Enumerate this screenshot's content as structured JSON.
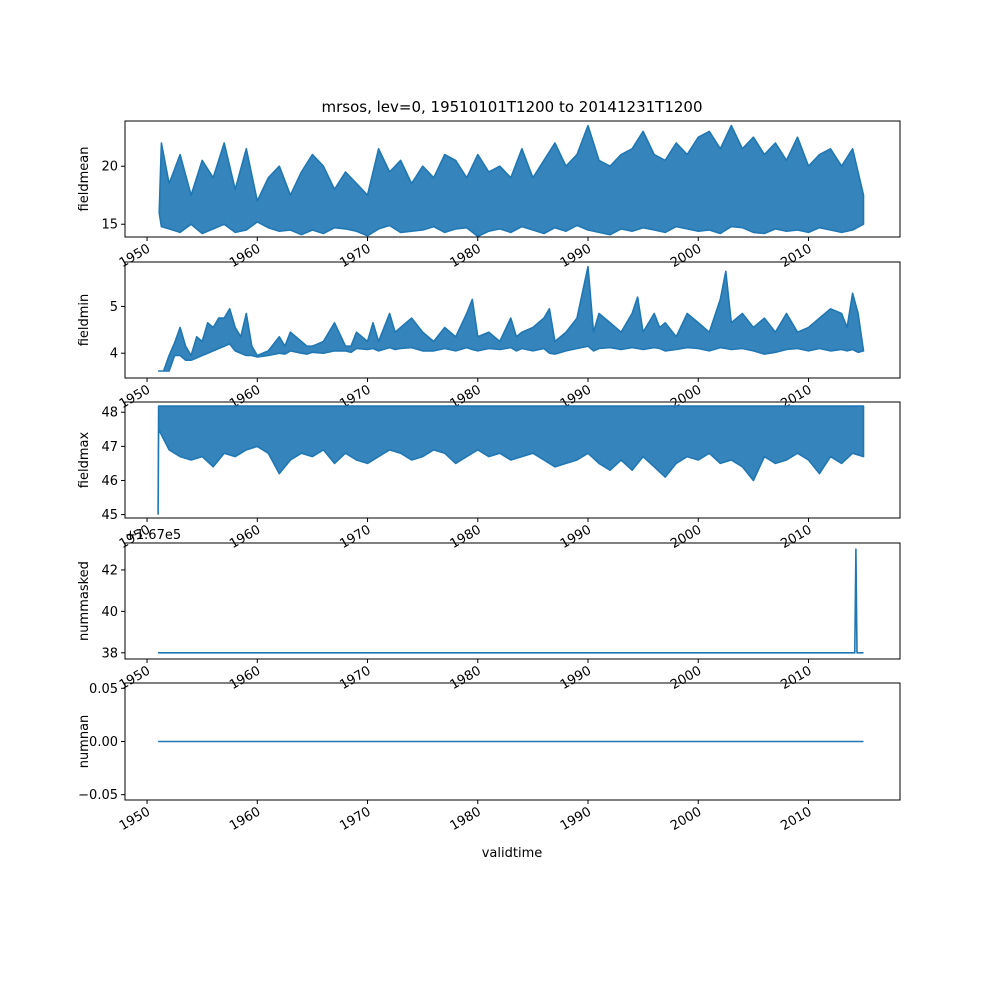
{
  "figure": {
    "title": "mrsos, lev=0, 19510101T1200 to 20141231T1200",
    "xlabel": "validtime",
    "x_tick_labels": [
      "1950",
      "1960",
      "1970",
      "1980",
      "1990",
      "2000",
      "2010"
    ]
  },
  "chart_data": [
    {
      "type": "line",
      "ylabel": "fieldmean",
      "series_color": "#1f77b4",
      "xlim": [
        1948.0,
        2018.3
      ],
      "ylim": [
        13.9,
        23.9
      ],
      "yticks": [
        15,
        20
      ],
      "ytick_labels": [
        "15",
        "20"
      ],
      "offset_text": "",
      "x": [
        1951.1,
        1951.3,
        1952.0,
        1953.0,
        1954.0,
        1955.0,
        1956.0,
        1957.0,
        1958.0,
        1959.0,
        1960.0,
        1961.0,
        1962.0,
        1963.0,
        1964.0,
        1965.0,
        1966.0,
        1967.0,
        1968.0,
        1969.0,
        1970.0,
        1971.0,
        1972.0,
        1973.0,
        1974.0,
        1975.0,
        1976.0,
        1977.0,
        1978.0,
        1979.0,
        1980.0,
        1981.0,
        1982.0,
        1983.0,
        1984.0,
        1985.0,
        1986.0,
        1987.0,
        1988.0,
        1989.0,
        1990.0,
        1991.0,
        1992.0,
        1993.0,
        1994.0,
        1995.0,
        1996.0,
        1997.0,
        1998.0,
        1999.0,
        2000.0,
        2001.0,
        2002.0,
        2003.0,
        2004.0,
        2005.0,
        2006.0,
        2007.0,
        2008.0,
        2009.0,
        2010.0,
        2011.0,
        2012.0,
        2013.0,
        2014.0,
        2014.99
      ],
      "y": [
        16.0,
        22.0,
        18.5,
        21.0,
        17.5,
        20.5,
        19.0,
        22.0,
        18.0,
        21.5,
        17.0,
        19.0,
        20.0,
        17.5,
        19.5,
        21.0,
        20.0,
        18.0,
        19.5,
        18.5,
        17.5,
        21.5,
        19.5,
        20.5,
        18.5,
        20.0,
        19.0,
        21.0,
        20.5,
        19.0,
        21.0,
        19.5,
        20.0,
        19.0,
        21.5,
        19.0,
        20.5,
        22.0,
        20.0,
        21.0,
        23.5,
        20.5,
        20.0,
        21.0,
        21.5,
        23.0,
        21.0,
        20.5,
        22.0,
        21.0,
        22.5,
        23.0,
        21.5,
        23.5,
        21.5,
        22.5,
        21.0,
        22.0,
        20.5,
        22.5,
        20.0,
        21.0,
        21.5,
        20.0,
        21.5,
        17.5
      ],
      "y_low": [
        16.0,
        14.8,
        14.6,
        14.3,
        15.0,
        14.2,
        14.6,
        15.0,
        14.3,
        14.5,
        15.2,
        14.7,
        14.4,
        14.5,
        14.1,
        14.5,
        14.2,
        14.7,
        14.6,
        14.4,
        14.0,
        14.6,
        14.9,
        14.3,
        14.4,
        14.5,
        14.8,
        14.3,
        14.6,
        14.7,
        13.95,
        14.4,
        14.6,
        14.3,
        14.8,
        14.5,
        14.2,
        14.7,
        14.4,
        14.9,
        14.5,
        14.3,
        14.1,
        14.6,
        14.4,
        14.7,
        14.5,
        14.3,
        14.8,
        14.6,
        14.4,
        14.5,
        14.2,
        14.8,
        14.7,
        14.3,
        14.2,
        14.6,
        14.4,
        14.5,
        14.3,
        14.7,
        14.5,
        14.3,
        14.5,
        15.0
      ]
    },
    {
      "type": "line",
      "ylabel": "fieldmin",
      "series_color": "#1f77b4",
      "xlim": [
        1948.0,
        2018.3
      ],
      "ylim": [
        3.47,
        5.95
      ],
      "yticks": [
        4,
        5
      ],
      "ytick_labels": [
        "4",
        "5"
      ],
      "offset_text": "",
      "x": [
        1951.0,
        1951.5,
        1952.0,
        1952.5,
        1953.0,
        1953.5,
        1954.0,
        1954.5,
        1955.0,
        1955.5,
        1956.0,
        1956.5,
        1957.0,
        1957.5,
        1958.0,
        1958.5,
        1959.0,
        1959.5,
        1960.0,
        1961.0,
        1962.0,
        1962.5,
        1963.0,
        1964.0,
        1964.5,
        1965.0,
        1966.0,
        1967.0,
        1968.0,
        1968.5,
        1969.0,
        1970.0,
        1970.5,
        1971.0,
        1972.0,
        1972.5,
        1973.0,
        1974.0,
        1975.0,
        1976.0,
        1977.0,
        1978.0,
        1979.0,
        1979.5,
        1980.0,
        1981.0,
        1982.0,
        1983.0,
        1983.5,
        1984.0,
        1985.0,
        1986.0,
        1986.5,
        1987.0,
        1988.0,
        1989.0,
        1990.0,
        1990.5,
        1991.0,
        1992.0,
        1993.0,
        1994.0,
        1994.5,
        1995.0,
        1996.0,
        1996.5,
        1997.0,
        1998.0,
        1999.0,
        2000.0,
        2001.0,
        2002.0,
        2002.5,
        2003.0,
        2004.0,
        2005.0,
        2006.0,
        2007.0,
        2008.0,
        2009.0,
        2010.0,
        2011.0,
        2012.0,
        2013.0,
        2013.5,
        2014.0,
        2014.5,
        2014.99
      ],
      "y": [
        3.62,
        3.62,
        3.95,
        4.22,
        4.55,
        4.15,
        3.95,
        4.35,
        4.25,
        4.65,
        4.55,
        4.75,
        4.75,
        4.95,
        4.55,
        4.35,
        4.85,
        4.15,
        3.95,
        4.05,
        4.35,
        4.15,
        4.45,
        4.25,
        4.15,
        4.15,
        4.25,
        4.65,
        4.15,
        4.15,
        4.45,
        4.25,
        4.65,
        4.25,
        4.85,
        4.45,
        4.55,
        4.75,
        4.45,
        4.25,
        4.55,
        4.35,
        4.85,
        5.15,
        4.35,
        4.45,
        4.25,
        4.75,
        4.35,
        4.45,
        4.55,
        4.75,
        4.95,
        4.25,
        4.45,
        4.75,
        5.85,
        4.45,
        4.85,
        4.65,
        4.45,
        4.85,
        5.2,
        4.45,
        4.85,
        4.55,
        4.65,
        4.35,
        4.85,
        4.65,
        4.45,
        5.15,
        5.75,
        4.65,
        4.85,
        4.55,
        4.75,
        4.45,
        4.85,
        4.45,
        4.55,
        4.75,
        4.95,
        4.85,
        4.55,
        5.28,
        4.85,
        4.05
      ],
      "y_low": [
        3.62,
        3.62,
        3.62,
        3.95,
        3.95,
        3.85,
        3.85,
        3.9,
        3.95,
        4.0,
        4.05,
        4.1,
        4.15,
        4.2,
        4.05,
        4.0,
        3.95,
        3.95,
        3.92,
        3.95,
        4.0,
        3.98,
        4.05,
        4.0,
        3.98,
        4.02,
        4.0,
        4.05,
        4.05,
        4.02,
        4.1,
        4.08,
        4.1,
        4.05,
        4.12,
        4.08,
        4.1,
        4.12,
        4.05,
        4.05,
        4.1,
        4.05,
        4.12,
        4.08,
        4.05,
        4.1,
        4.08,
        4.12,
        4.05,
        4.1,
        4.05,
        4.1,
        4.0,
        3.98,
        4.05,
        4.1,
        4.15,
        4.05,
        4.1,
        4.12,
        4.08,
        4.12,
        4.1,
        4.08,
        4.12,
        4.1,
        4.05,
        4.08,
        4.12,
        4.1,
        4.05,
        4.12,
        4.1,
        4.08,
        4.1,
        4.05,
        3.98,
        4.02,
        4.08,
        4.1,
        4.05,
        4.1,
        4.05,
        4.08,
        4.05,
        4.08,
        4.02,
        4.05
      ]
    },
    {
      "type": "line",
      "ylabel": "fieldmax",
      "series_color": "#1f77b4",
      "xlim": [
        1948.0,
        2018.3
      ],
      "ylim": [
        44.9,
        48.3
      ],
      "yticks": [
        45,
        46,
        47,
        48
      ],
      "ytick_labels": [
        "45",
        "46",
        "47",
        "48"
      ],
      "offset_text": "",
      "x": [
        1951.0,
        1951.05,
        1952.0,
        1953.0,
        1954.0,
        1955.0,
        1956.0,
        1957.0,
        1958.0,
        1959.0,
        1960.0,
        1961.0,
        1962.0,
        1963.0,
        1964.0,
        1965.0,
        1966.0,
        1967.0,
        1968.0,
        1969.0,
        1970.0,
        1971.0,
        1972.0,
        1973.0,
        1974.0,
        1975.0,
        1976.0,
        1977.0,
        1978.0,
        1979.0,
        1980.0,
        1981.0,
        1982.0,
        1983.0,
        1984.0,
        1985.0,
        1986.0,
        1987.0,
        1988.0,
        1989.0,
        1990.0,
        1991.0,
        1992.0,
        1993.0,
        1994.0,
        1995.0,
        1996.0,
        1997.0,
        1998.0,
        1999.0,
        2000.0,
        2001.0,
        2002.0,
        2003.0,
        2004.0,
        2005.0,
        2006.0,
        2007.0,
        2008.0,
        2009.0,
        2010.0,
        2011.0,
        2012.0,
        2013.0,
        2014.0,
        2014.99
      ],
      "y": [
        45.0,
        48.18,
        48.18,
        48.18,
        48.18,
        48.18,
        48.18,
        48.18,
        48.18,
        48.18,
        48.18,
        48.18,
        48.18,
        48.18,
        48.18,
        48.18,
        48.18,
        48.18,
        48.18,
        48.18,
        48.18,
        48.18,
        48.18,
        48.18,
        48.18,
        48.18,
        48.18,
        48.18,
        48.18,
        48.18,
        48.18,
        48.18,
        48.18,
        48.18,
        48.18,
        48.18,
        48.18,
        48.18,
        48.18,
        48.18,
        48.18,
        48.18,
        48.18,
        48.18,
        48.18,
        48.18,
        48.18,
        48.18,
        48.18,
        48.18,
        48.18,
        48.18,
        48.18,
        48.18,
        48.18,
        48.18,
        48.18,
        48.18,
        48.18,
        48.18,
        48.18,
        48.18,
        48.18,
        48.18,
        48.18,
        48.18
      ],
      "y_low": [
        45.0,
        47.5,
        46.9,
        46.7,
        46.6,
        46.7,
        46.4,
        46.8,
        46.7,
        46.9,
        47.0,
        46.8,
        46.2,
        46.6,
        46.8,
        46.7,
        46.9,
        46.5,
        46.8,
        46.6,
        46.5,
        46.7,
        46.9,
        46.8,
        46.6,
        46.7,
        46.9,
        46.8,
        46.5,
        46.7,
        46.9,
        46.7,
        46.8,
        46.6,
        46.7,
        46.8,
        46.6,
        46.4,
        46.5,
        46.6,
        46.8,
        46.5,
        46.3,
        46.6,
        46.3,
        46.7,
        46.4,
        46.1,
        46.5,
        46.7,
        46.6,
        46.8,
        46.5,
        46.6,
        46.4,
        46.0,
        46.7,
        46.5,
        46.6,
        46.8,
        46.6,
        46.2,
        46.7,
        46.5,
        46.8,
        46.7
      ]
    },
    {
      "type": "line",
      "ylabel": "nummasked",
      "series_color": "#1f77b4",
      "xlim": [
        1948.0,
        2018.3
      ],
      "ylim": [
        37.7,
        43.3
      ],
      "yticks": [
        38,
        40,
        42
      ],
      "ytick_labels": [
        "38",
        "40",
        "42"
      ],
      "offset_text": "+1.67e5",
      "x": [
        1951.0,
        2014.2,
        2014.3,
        2014.4,
        2014.5,
        2014.99
      ],
      "y": [
        38,
        38,
        43,
        38,
        38,
        38
      ]
    },
    {
      "type": "line",
      "ylabel": "numnan",
      "series_color": "#1f77b4",
      "xlim": [
        1948.0,
        2018.3
      ],
      "ylim": [
        -0.055,
        0.055
      ],
      "yticks": [
        -0.05,
        0.0,
        0.05
      ],
      "ytick_labels": [
        "−0.05",
        "0.00",
        "0.05"
      ],
      "offset_text": "",
      "x": [
        1951.0,
        2014.99
      ],
      "y": [
        0.0,
        0.0
      ]
    }
  ]
}
